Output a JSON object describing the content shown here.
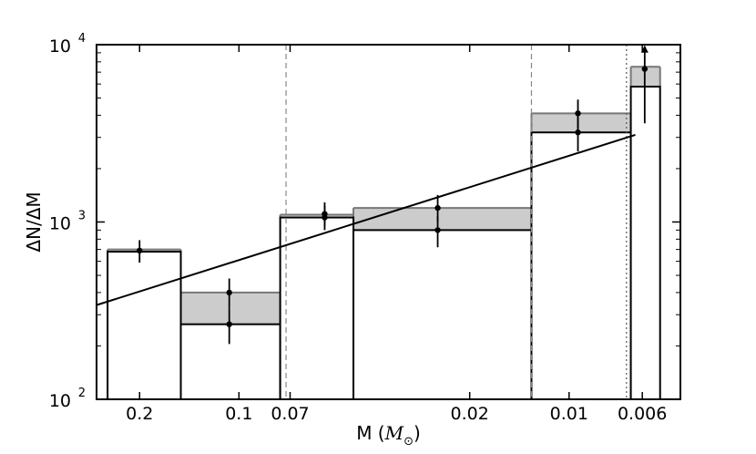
{
  "chart_data": {
    "type": "bar",
    "xlabel": "M (M⊙)",
    "xlabel_parts": {
      "prefix": "M (",
      "symbol": "M",
      "subscript": "⊙",
      "suffix": ")"
    },
    "ylabel": "ΔN/ΔM",
    "y_scale": "log",
    "ylim": [
      100,
      10000
    ],
    "y_ticks": [
      {
        "value": 100,
        "base": "10",
        "exp": "2"
      },
      {
        "value": 1000,
        "base": "10",
        "exp": "3"
      },
      {
        "value": 10000,
        "base": "10",
        "exp": "4"
      }
    ],
    "x_scale": "log-reversed",
    "xlim": [
      0.27,
      0.0046
    ],
    "x_ticks": [
      {
        "value": 0.2,
        "label": "0.2"
      },
      {
        "value": 0.1,
        "label": "0.1"
      },
      {
        "value": 0.07,
        "label": "0.07"
      },
      {
        "value": 0.02,
        "label": "0.02"
      },
      {
        "value": 0.01,
        "label": "0.01"
      },
      {
        "value": 0.006,
        "label": "0.006"
      }
    ],
    "bins": [
      {
        "m_high": 0.25,
        "m_low": 0.15,
        "value_open": 680,
        "value_shaded": 700
      },
      {
        "m_high": 0.15,
        "m_low": 0.075,
        "value_open": 265,
        "value_shaded": 400
      },
      {
        "m_high": 0.075,
        "m_low": 0.045,
        "value_open": 1060,
        "value_shaded": 1100
      },
      {
        "m_high": 0.045,
        "m_low": 0.013,
        "value_open": 900,
        "value_shaded": 1200
      },
      {
        "m_high": 0.013,
        "m_low": 0.0065,
        "value_open": 3200,
        "value_shaded": 4100
      },
      {
        "m_high": 0.0065,
        "m_low": 0.0053,
        "value_open": 5800,
        "value_shaded": 7500
      }
    ],
    "points": [
      {
        "m": 0.2,
        "y": 690,
        "lo": 590,
        "hi": 790
      },
      {
        "m": 0.107,
        "y": 265,
        "lo": 205,
        "hi": 330
      },
      {
        "m": 0.107,
        "y": 400,
        "lo": 330,
        "hi": 480
      },
      {
        "m": 0.055,
        "y": 1060,
        "lo": 900,
        "hi": 1230
      },
      {
        "m": 0.055,
        "y": 1110,
        "lo": 950,
        "hi": 1290
      },
      {
        "m": 0.025,
        "y": 900,
        "lo": 720,
        "hi": 1080
      },
      {
        "m": 0.025,
        "y": 1200,
        "lo": 1010,
        "hi": 1420
      },
      {
        "m": 0.0094,
        "y": 3200,
        "lo": 2500,
        "hi": 3900
      },
      {
        "m": 0.0094,
        "y": 4100,
        "lo": 3400,
        "hi": 4900
      },
      {
        "m": 0.0059,
        "y": 7300,
        "lo": 3600,
        "hi": 9800
      }
    ],
    "fit_line": {
      "x": [
        0.27,
        0.0063
      ],
      "y": [
        340,
        3100
      ]
    },
    "vertical_lines": [
      {
        "m": 0.072,
        "style": "dashed"
      },
      {
        "m": 0.013,
        "style": "dashed"
      },
      {
        "m": 0.0067,
        "style": "dotted"
      }
    ],
    "grid": false,
    "colors": {
      "shaded": "#cccccc",
      "shaded_edge": "#777777",
      "line": "#000000",
      "guide": "#888888"
    }
  }
}
